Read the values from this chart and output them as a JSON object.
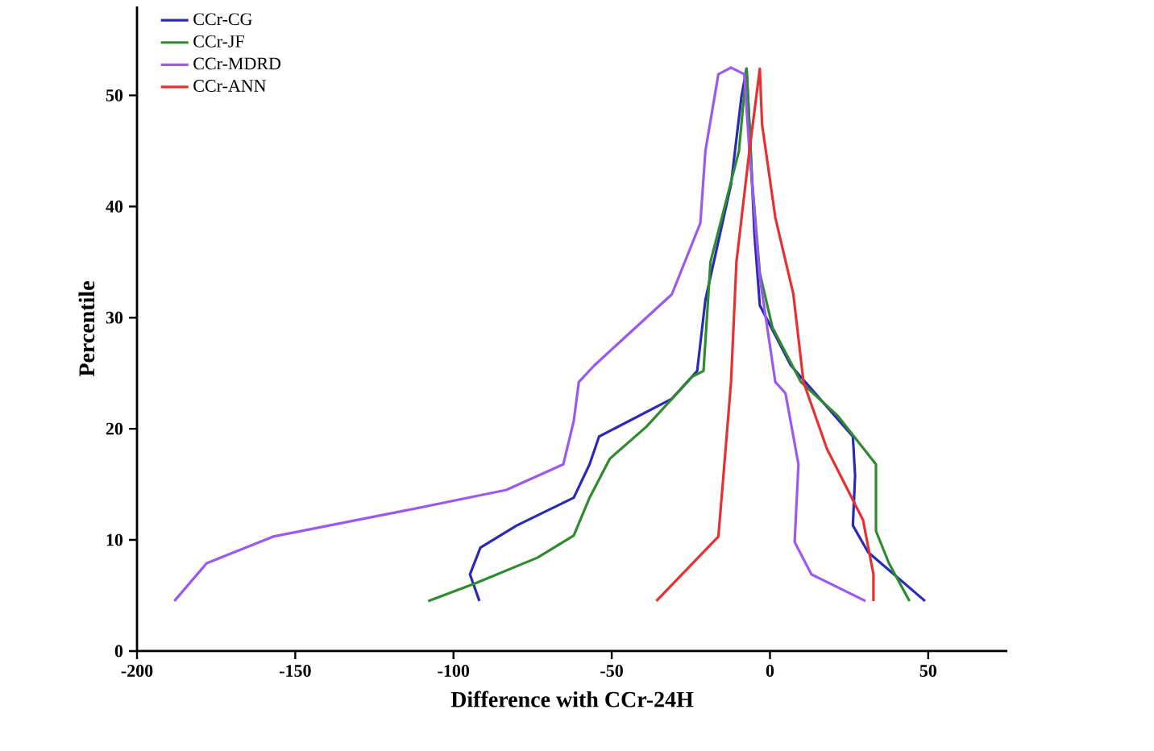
{
  "chart_data": {
    "type": "line",
    "xlabel": "Difference with CCr-24H",
    "ylabel": "Percentile",
    "xlim": [
      -200,
      75
    ],
    "ylim": [
      0,
      58
    ],
    "xticks": [
      -200,
      -150,
      -100,
      -50,
      0,
      50
    ],
    "yticks": [
      0,
      10,
      20,
      30,
      40,
      50
    ],
    "grid": false,
    "legend": "top left",
    "marker": "none",
    "line_style": "solid",
    "series": [
      {
        "name": "CCr-CG",
        "color": "#2a2ab8",
        "x": [
          -91.8,
          -94.8,
          -91.5,
          -80,
          -62,
          -57,
          -54,
          -31,
          -23,
          -20.4,
          -12.3,
          -9,
          -7.4,
          -6.5,
          -4.9,
          -3.2,
          6.6,
          26.2,
          26.9,
          26.2,
          31,
          49
        ],
        "values": [
          4.5,
          6.9,
          9.3,
          11.3,
          13.8,
          16.8,
          19.3,
          22.7,
          25.2,
          31.6,
          42,
          49.9,
          52.4,
          47.5,
          37.5,
          31.1,
          25.7,
          19.3,
          15.8,
          11.3,
          8.9,
          4.5
        ]
      },
      {
        "name": "CCr-JF",
        "color": "#2e8b2e",
        "x": [
          -108,
          -93,
          -73.5,
          -62,
          -57,
          -50.6,
          -39,
          -24.5,
          -21,
          -18.8,
          -9.8,
          -7.4,
          -5.7,
          -3.2,
          0.8,
          9.8,
          21.3,
          33.5,
          33.5,
          37.6,
          44.1
        ],
        "values": [
          4.5,
          6.1,
          8.4,
          10.4,
          13.8,
          17.3,
          20.2,
          24.7,
          25.2,
          35,
          45,
          52.4,
          42.5,
          34,
          29.1,
          24.2,
          21.2,
          16.8,
          10.8,
          7.9,
          4.5
        ]
      },
      {
        "name": "CCr-MDRD",
        "color": "#9b59f0",
        "x": [
          -188.2,
          -178,
          -157,
          -116,
          -83.3,
          -65.3,
          -62,
          -60.4,
          -55.5,
          -31,
          -22,
          -20.4,
          -16.3,
          -12.3,
          -8.1,
          -6.5,
          -3.2,
          1.7,
          4.9,
          9,
          7.8,
          13.1,
          30.2
        ],
        "values": [
          4.5,
          7.9,
          10.3,
          12.6,
          14.5,
          16.8,
          20.7,
          24.2,
          25.7,
          32.1,
          38.5,
          45,
          51.9,
          52.5,
          51.9,
          45,
          33.6,
          24.2,
          23.2,
          16.8,
          9.8,
          6.9,
          4.5
        ]
      },
      {
        "name": "CCr-ANN",
        "color": "#e83030",
        "x": [
          -35.9,
          -16.3,
          -14.7,
          -12.3,
          -10.6,
          -6.5,
          -3.2,
          -2.5,
          1.7,
          7.4,
          10.6,
          18,
          29.4,
          32.7,
          32.7
        ],
        "values": [
          4.5,
          10.3,
          15.8,
          24.2,
          35,
          45,
          52.4,
          47.4,
          39,
          32.1,
          24.2,
          18.2,
          11.8,
          6.9,
          4.5
        ]
      }
    ]
  }
}
